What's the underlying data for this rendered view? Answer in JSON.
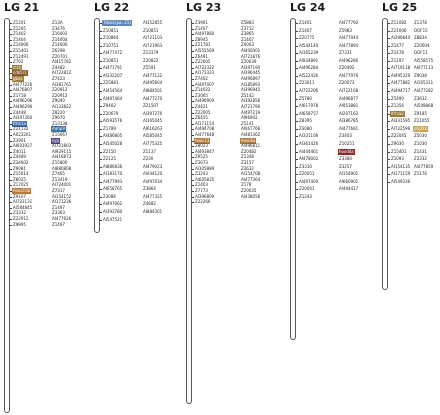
{
  "linkage_groups": [
    {
      "name": "LG 21",
      "markers": [
        {
          "label": "Z1201"
        },
        {
          "label": "Z13A"
        },
        {
          "label": "Z1205"
        },
        {
          "label": "Z3476"
        },
        {
          "label": "Z1402"
        },
        {
          "label": "Z16002"
        },
        {
          "label": "Z1404"
        },
        {
          "label": "Z14004"
        },
        {
          "label": "Z14006"
        },
        {
          "label": "Z14006"
        },
        {
          "label": "Z15401"
        },
        {
          "label": "Z6298"
        },
        {
          "label": "Z12491"
        },
        {
          "label": "Z20701"
        },
        {
          "label": "Z702"
        },
        {
          "label": "AI415782"
        },
        {
          "label": "ctck",
          "color": "#9a7b3e"
        },
        {
          "label": "Z4482"
        },
        {
          "label": "cdk5r1",
          "color": "#8a5e2e"
        },
        {
          "label": "AI722812"
        },
        {
          "label": "gbas",
          "color": "#a08040"
        },
        {
          "label": "Z7423"
        },
        {
          "label": "AI477226"
        },
        {
          "label": "AI381761"
        },
        {
          "label": "AI476807"
        },
        {
          "label": "Z20912"
        },
        {
          "label": "Z1718"
        },
        {
          "label": "Z20912"
        },
        {
          "label": "AI496296"
        },
        {
          "label": "Z9040"
        },
        {
          "label": "AI496296"
        },
        {
          "label": "AI133822"
        },
        {
          "label": "Z4448"
        },
        {
          "label": "Z8220"
        },
        {
          "label": "AI397360"
        },
        {
          "label": "Z9070"
        },
        {
          "label": "fthb1a",
          "color": "#3a6fa8"
        },
        {
          "label": "Z13138"
        },
        {
          "label": "Z21132"
        },
        {
          "label": "mmp9",
          "color": "#3a6fa8"
        },
        {
          "label": "A022201"
        },
        {
          "label": "Z15667"
        },
        {
          "label": "Z3901"
        },
        {
          "label": "syp",
          "color": "#5e4a8a"
        },
        {
          "label": "AI601927"
        },
        {
          "label": "AI721803"
        },
        {
          "label": "Z4011"
        },
        {
          "label": "AI929115"
        },
        {
          "label": "Z4489"
        },
        {
          "label": "AI416873"
        },
        {
          "label": "Z34602"
        },
        {
          "label": "Z15800"
        },
        {
          "label": "Z9081"
        },
        {
          "label": "AI880808"
        },
        {
          "label": "Z15013"
        },
        {
          "label": "Z7465"
        },
        {
          "label": "Z8025"
        },
        {
          "label": "Z13419"
        },
        {
          "label": "Z17025"
        },
        {
          "label": "AI724001"
        },
        {
          "label": "hoxa10b",
          "color": "#b07a3a"
        },
        {
          "label": "Z7317"
        },
        {
          "label": "Z9107"
        },
        {
          "label": "AI154152"
        },
        {
          "label": "AI722131"
        },
        {
          "label": "AI171236"
        },
        {
          "label": "AI584845"
        },
        {
          "label": "Z1497"
        },
        {
          "label": "Z3332"
        },
        {
          "label": "Z3363"
        },
        {
          "label": "Z22912"
        },
        {
          "label": "AI477926"
        },
        {
          "label": "Z9895"
        },
        {
          "label": "Z1497"
        }
      ]
    },
    {
      "name": "LG 22",
      "markers": [
        {
          "label": "Tdsa1(pa, 21)",
          "color": "#5e87b8"
        },
        {
          "label": "AI352855"
        },
        {
          "label": "Z10851"
        },
        {
          "label": "Z10851"
        },
        {
          "label": "Z10864"
        },
        {
          "label": "AI721103"
        },
        {
          "label": "Z10751"
        },
        {
          "label": "AI721963"
        },
        {
          "label": "AI477472"
        },
        {
          "label": "Z13379"
        },
        {
          "label": "Z10851"
        },
        {
          "label": "Z20822"
        },
        {
          "label": "AI471791"
        },
        {
          "label": "Z5591"
        },
        {
          "label": "AI332207"
        },
        {
          "label": "AI477122"
        },
        {
          "label": "Z25881"
        },
        {
          "label": "AI495804"
        },
        {
          "label": "AI454564"
        },
        {
          "label": "AI884501"
        },
        {
          "label": "AI497464"
        },
        {
          "label": "AI477270"
        },
        {
          "label": "Z9402"
        },
        {
          "label": "Z21507"
        },
        {
          "label": "Z20679"
        },
        {
          "label": "AI397270"
        },
        {
          "label": "AI593576"
        },
        {
          "label": "AI165045"
        },
        {
          "label": "Z1789"
        },
        {
          "label": "AI616263"
        },
        {
          "label": "AI486805"
        },
        {
          "label": "AI585045"
        },
        {
          "label": "AI545028"
        },
        {
          "label": "AI775325"
        },
        {
          "label": "Z2150"
        },
        {
          "label": "Z1137"
        },
        {
          "label": "Z2125"
        },
        {
          "label": "Z230"
        },
        {
          "label": "AI886836"
        },
        {
          "label": "AI479023"
        },
        {
          "label": "AI183170"
        },
        {
          "label": "AI444120"
        },
        {
          "label": "AI477993"
        },
        {
          "label": "AI497034"
        },
        {
          "label": "AI658765"
        },
        {
          "label": "Z3864"
        },
        {
          "label": "Z3086"
        },
        {
          "label": "AI477325"
        },
        {
          "label": "AI497062"
        },
        {
          "label": "Z4682"
        },
        {
          "label": "AI393780"
        },
        {
          "label": "AI884301"
        },
        {
          "label": "AI547521"
        }
      ]
    },
    {
      "name": "LG 23",
      "markers": [
        {
          "label": "Z3961"
        },
        {
          "label": "Z5883"
        },
        {
          "label": "Z1407"
        },
        {
          "label": "Z3712"
        },
        {
          "label": "AI497880"
        },
        {
          "label": "Z3865"
        },
        {
          "label": "Z8945"
        },
        {
          "label": "Z1407"
        },
        {
          "label": "Z21781"
        },
        {
          "label": "Z4003"
        },
        {
          "label": "AI555569"
        },
        {
          "label": "AI400001"
        },
        {
          "label": "Z6491"
        },
        {
          "label": "AI721876"
        },
        {
          "label": "Z22605"
        },
        {
          "label": "Z20039"
        },
        {
          "label": "AI722322"
        },
        {
          "label": "AI397190"
        },
        {
          "label": "AI171323"
        },
        {
          "label": "AI396445"
        },
        {
          "label": "Z7402"
        },
        {
          "label": "AI496897"
        },
        {
          "label": "AI497007"
        },
        {
          "label": "AI185893"
        },
        {
          "label": "Z14022"
        },
        {
          "label": "AI396945"
        },
        {
          "label": "Z3065"
        },
        {
          "label": "Z5142"
        },
        {
          "label": "AI496900"
        },
        {
          "label": "AI392856"
        },
        {
          "label": "Z4421"
        },
        {
          "label": "AI721790"
        },
        {
          "label": "Z22005"
        },
        {
          "label": "AI497219"
        },
        {
          "label": "Z6455"
        },
        {
          "label": "AI96942"
        },
        {
          "label": "AI171154"
        },
        {
          "label": "Z5141"
        },
        {
          "label": "AI494708"
        },
        {
          "label": "AI067766"
        },
        {
          "label": "AI477648"
        },
        {
          "label": "AI481362"
        },
        {
          "label": "hoxc13",
          "color": "#b07a3a"
        },
        {
          "label": "hoxc6a",
          "color": "#b07a3a"
        },
        {
          "label": "Z8023"
        },
        {
          "label": "AI496811"
        },
        {
          "label": "AI493847"
        },
        {
          "label": "Z20482"
        },
        {
          "label": "Z9525"
        },
        {
          "label": "Z1348"
        },
        {
          "label": "Z3673"
        },
        {
          "label": "Z3157"
        },
        {
          "label": "AI305889"
        },
        {
          "label": "Z3632"
        },
        {
          "label": "Z3243"
        },
        {
          "label": "AI154708"
        },
        {
          "label": "AI605835"
        },
        {
          "label": "AI477364"
        },
        {
          "label": "Z1403"
        },
        {
          "label": "Z178"
        },
        {
          "label": "Z7773"
        },
        {
          "label": "Z20035"
        },
        {
          "label": "AI396809"
        },
        {
          "label": "AI438056"
        },
        {
          "label": "Z22266"
        }
      ]
    },
    {
      "name": "LG 24",
      "markers": [
        {
          "label": "Z1401"
        },
        {
          "label": "AI477792"
        },
        {
          "label": "Z1407"
        },
        {
          "label": "Z5983"
        },
        {
          "label": "Z20775"
        },
        {
          "label": "AI477944"
        },
        {
          "label": "AI544140"
        },
        {
          "label": "AI477894"
        },
        {
          "label": "AI165239"
        },
        {
          "label": "Z7331"
        },
        {
          "label": "AI934891"
        },
        {
          "label": "AI496280"
        },
        {
          "label": "AI496284"
        },
        {
          "label": "Z20492"
        },
        {
          "label": "AI522426"
        },
        {
          "label": "AI477976"
        },
        {
          "label": "Z23011"
        },
        {
          "label": "Z20073"
        },
        {
          "label": "AI722206"
        },
        {
          "label": "AI722168"
        },
        {
          "label": "Z5780"
        },
        {
          "label": "AI496877"
        },
        {
          "label": "AI617978"
        },
        {
          "label": "AI953881"
        },
        {
          "label": "AI658757"
        },
        {
          "label": "AI207162"
        },
        {
          "label": "Z8395"
        },
        {
          "label": "AI386785"
        },
        {
          "label": "Z3080"
        },
        {
          "label": "AI477681"
        },
        {
          "label": "AI331106"
        },
        {
          "label": "Z3403"
        },
        {
          "label": "AI361426"
        },
        {
          "label": "Z10251"
        },
        {
          "label": "AI444461"
        },
        {
          "label": "hoxd4a",
          "color": "#8a2a2a"
        },
        {
          "label": "AI478002"
        },
        {
          "label": "Z3380"
        },
        {
          "label": "Z3310"
        },
        {
          "label": "Z3257"
        },
        {
          "label": "Z20051"
        },
        {
          "label": "AI154901"
        },
        {
          "label": "AI497400"
        },
        {
          "label": "AI660901"
        },
        {
          "label": "Z20041"
        },
        {
          "label": "AI494417"
        },
        {
          "label": "Z1243"
        }
      ]
    },
    {
      "name": "LG 25",
      "markers": [
        {
          "label": "Z11082"
        },
        {
          "label": "Z1378"
        },
        {
          "label": "Z21006"
        },
        {
          "label": "OOF15"
        },
        {
          "label": "AI396844"
        },
        {
          "label": "Z8834"
        },
        {
          "label": "Z1477"
        },
        {
          "label": "Z20004"
        },
        {
          "label": "Z1478"
        },
        {
          "label": "OOF11"
        },
        {
          "label": "Z1197"
        },
        {
          "label": "AI558575"
        },
        {
          "label": "AI719118"
        },
        {
          "label": "AI477113"
        },
        {
          "label": "AI495329"
        },
        {
          "label": "Z9038"
        },
        {
          "label": "AI477882"
        },
        {
          "label": "AI165311"
        },
        {
          "label": "AI494717"
        },
        {
          "label": "AI477282"
        },
        {
          "label": "Z5490"
        },
        {
          "label": "Z3632"
        },
        {
          "label": "Z1356"
        },
        {
          "label": "AI549868"
        },
        {
          "label": "ifrrsa2",
          "color": "#9a7b3e"
        },
        {
          "label": "Z9185"
        },
        {
          "label": "AI331595"
        },
        {
          "label": "Z21055"
        },
        {
          "label": "AI722599"
        },
        {
          "label": "ptgf2b",
          "color": "#c9a24a"
        },
        {
          "label": "Z22045"
        },
        {
          "label": "Z5030"
        },
        {
          "label": "Z9030"
        },
        {
          "label": "Z1030"
        },
        {
          "label": "Z15401"
        },
        {
          "label": "Z1431"
        },
        {
          "label": "Z1093"
        },
        {
          "label": "Z3332"
        },
        {
          "label": "AI154135"
        },
        {
          "label": "AI477859"
        },
        {
          "label": "AI171159"
        },
        {
          "label": "Z1176"
        },
        {
          "label": "AI549336"
        }
      ]
    }
  ]
}
